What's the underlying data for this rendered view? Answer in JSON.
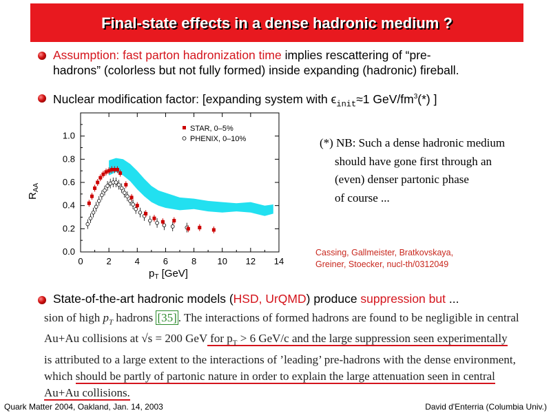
{
  "slide": {
    "title": "Final-state effects in a dense hadronic medium ?",
    "bullet1": {
      "red_text": "Assumption: fast parton hadronization time",
      "text_line1": " implies rescattering of “pre-",
      "line2": "hadrons” (colorless but not fully formed) inside expanding (hadronic) fireball."
    },
    "bullet2": {
      "prefix": "Nuclear modification factor: [expanding system with ",
      "epsilon": "ϵ",
      "sub": "init",
      "approx": "≈1 GeV/fm",
      "sup": "3",
      "suffix": "(*) ]"
    },
    "note": {
      "line1": "(*) NB: Such a dense hadronic medium",
      "line2": "should have gone first through an",
      "line3": "(even) denser partonic phase",
      "line4": "of course ..."
    },
    "reference": {
      "line1": "Cassing, Gallmeister, Bratkovskaya,",
      "line2": "Greiner, Stoecker, nucl-th/0312049"
    },
    "bullet3": {
      "pre": "State-of-the-art hadronic models (",
      "red1": "HSD, UrQMD",
      "mid": ") produce ",
      "red2": "suppression but",
      "post": " ..."
    },
    "excerpt": {
      "l1a": "sion of high ",
      "l1b": "p",
      "l1c": "T",
      "l1d": " hadrons ",
      "l1cite": "[35]",
      "l1e": ".  The interactions of formed hadrons are found to be negligible in central",
      "l2a": "Au+Au collisions at ",
      "l2b": "√s = 200 GeV",
      "l2c": " for p",
      "l2d": "T",
      "l2e": " > 6 GeV/c and the large suppression seen experimentally",
      "l3": "is attributed to a large extent to the interactions of ’leading’ pre-hadrons with the dense environment,",
      "l4a": "which ",
      "l4b": "should be partly of partonic nature in order to explain the large attenuation seen in central",
      "l5": "Au+Au collisions."
    },
    "footer": {
      "left": "Quark Matter 2004, Oakland, Jan. 14, 2003",
      "right": "David d'Enterria (Columbia Univ.)"
    },
    "colors": {
      "title_bg": "#e8191f",
      "accent_red": "#d4141c",
      "band": "#22e0f0"
    }
  },
  "chart_data": {
    "type": "scatter",
    "xlabel": "p",
    "xlabel_sub": "T",
    "xlabel_unit": " [GeV]",
    "ylabel": "R",
    "ylabel_sub": "AA",
    "xlim": [
      0,
      14
    ],
    "ylim": [
      0,
      1.2
    ],
    "xticks": [
      "0",
      "2",
      "4",
      "6",
      "8",
      "10",
      "12",
      "14"
    ],
    "yticks": [
      "0.0",
      "0.2",
      "0.4",
      "0.6",
      "0.8",
      "1.0"
    ],
    "legend_position": "top-right",
    "series": [
      {
        "name": "STAR, 0–5%",
        "marker": "filled-square",
        "color": "#cc0000",
        "x": [
          0.6,
          0.8,
          1.0,
          1.2,
          1.4,
          1.6,
          1.8,
          2.0,
          2.2,
          2.4,
          2.6,
          2.8,
          3.2,
          3.6,
          4.0,
          4.6,
          5.2,
          5.8,
          6.6,
          7.6,
          8.4,
          9.4
        ],
        "y": [
          0.42,
          0.48,
          0.55,
          0.6,
          0.64,
          0.67,
          0.69,
          0.7,
          0.71,
          0.71,
          0.71,
          0.68,
          0.58,
          0.47,
          0.4,
          0.33,
          0.29,
          0.26,
          0.27,
          0.2,
          0.21,
          0.19
        ]
      },
      {
        "name": "PHENIX, 0–10%",
        "marker": "open-circle",
        "color": "#000000",
        "x": [
          0.5,
          0.7,
          0.9,
          1.1,
          1.3,
          1.5,
          1.7,
          1.9,
          2.1,
          2.3,
          2.5,
          2.7,
          2.9,
          3.1,
          3.3,
          3.5,
          3.7,
          3.9,
          4.2,
          4.5,
          4.9,
          5.4,
          5.9,
          6.5,
          7.5
        ],
        "y": [
          0.24,
          0.29,
          0.34,
          0.39,
          0.44,
          0.49,
          0.53,
          0.57,
          0.59,
          0.6,
          0.6,
          0.58,
          0.55,
          0.51,
          0.48,
          0.44,
          0.41,
          0.37,
          0.34,
          0.31,
          0.27,
          0.25,
          0.23,
          0.22,
          0.21
        ]
      },
      {
        "name": "HSD band",
        "type": "area",
        "color": "#22e0f0",
        "x": [
          2.0,
          2.5,
          3.0,
          3.5,
          4.0,
          4.5,
          5.0,
          5.5,
          6.0,
          7.0,
          8.0,
          9.0,
          10.0,
          11.0,
          12.0,
          13.0,
          13.6
        ],
        "y_low": [
          0.66,
          0.69,
          0.66,
          0.61,
          0.54,
          0.48,
          0.43,
          0.4,
          0.38,
          0.36,
          0.37,
          0.35,
          0.34,
          0.35,
          0.34,
          0.31,
          0.33
        ],
        "y_high": [
          0.79,
          0.81,
          0.8,
          0.76,
          0.7,
          0.63,
          0.57,
          0.53,
          0.51,
          0.47,
          0.46,
          0.44,
          0.43,
          0.42,
          0.43,
          0.4,
          0.41
        ]
      }
    ]
  }
}
